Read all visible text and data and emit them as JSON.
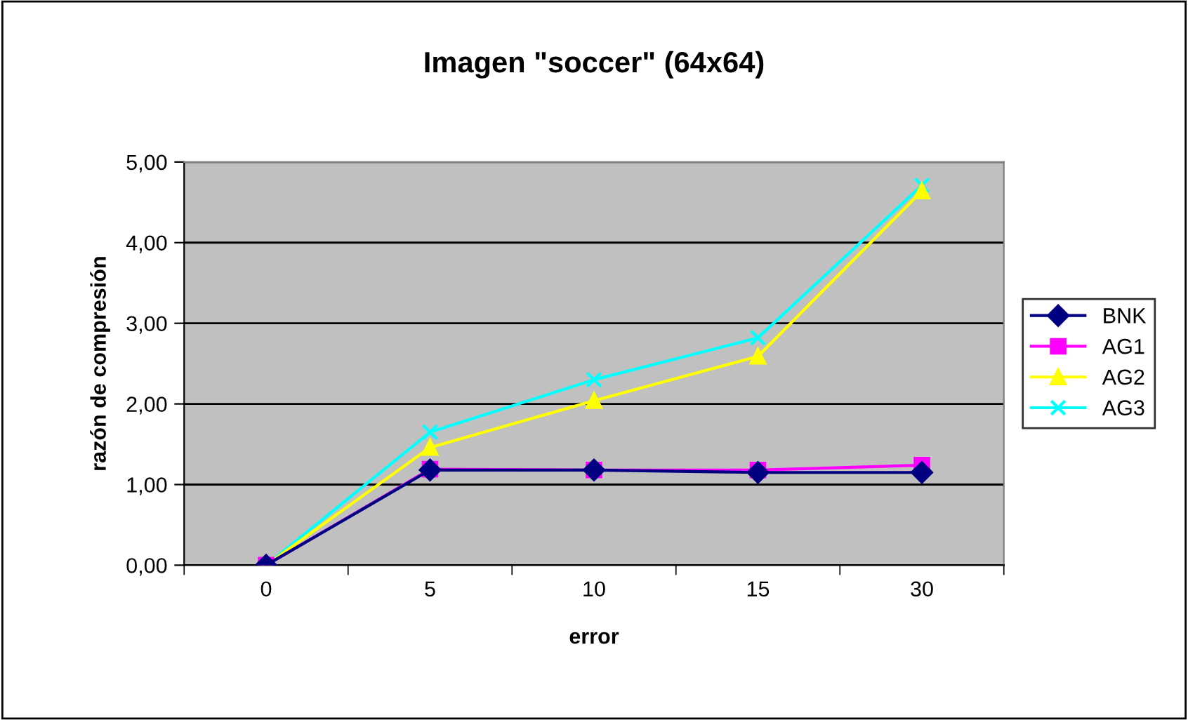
{
  "chart_data": {
    "type": "line",
    "title": "Imagen \"soccer\" (64x64)",
    "xlabel": "error",
    "ylabel": "razón de compresión",
    "categories": [
      "0",
      "5",
      "10",
      "15",
      "30"
    ],
    "series": [
      {
        "name": "BNK",
        "color": "#000080",
        "marker": "diamond",
        "values": [
          0,
          1.18,
          1.18,
          1.15,
          1.15
        ]
      },
      {
        "name": "AG1",
        "color": "#ff00ff",
        "marker": "square",
        "values": [
          0,
          1.19,
          1.18,
          1.18,
          1.24
        ]
      },
      {
        "name": "AG2",
        "color": "#ffff00",
        "marker": "triangle",
        "values": [
          0,
          1.46,
          2.04,
          2.59,
          4.64
        ]
      },
      {
        "name": "AG3",
        "color": "#00ffff",
        "marker": "cross",
        "values": [
          0,
          1.65,
          2.3,
          2.82,
          4.71
        ]
      }
    ],
    "ylim": [
      0,
      5
    ],
    "yticks": [
      {
        "value": 0,
        "label": "0,00"
      },
      {
        "value": 1,
        "label": "1,00"
      },
      {
        "value": 2,
        "label": "2,00"
      },
      {
        "value": 3,
        "label": "3,00"
      },
      {
        "value": 4,
        "label": "4,00"
      },
      {
        "value": 5,
        "label": "5,00"
      }
    ],
    "grid": "y",
    "legend": "right",
    "line_style": "solid"
  }
}
